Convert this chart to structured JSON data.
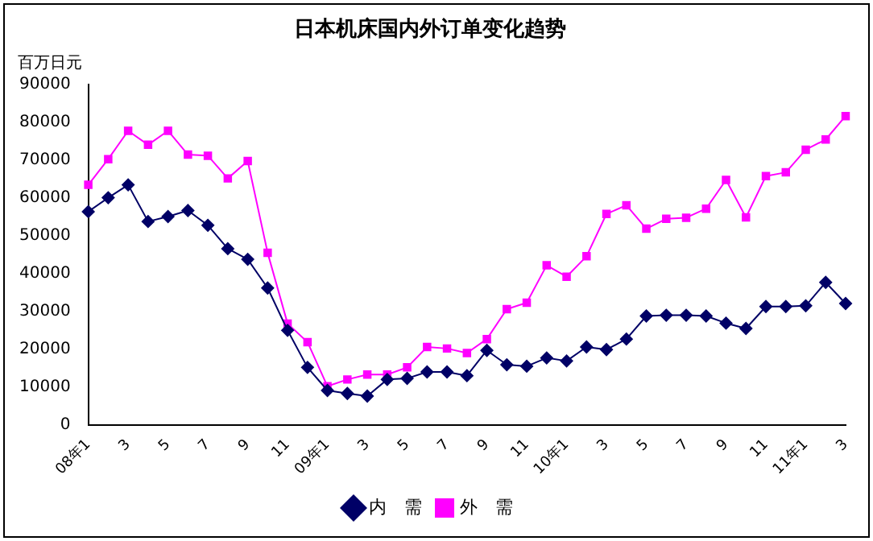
{
  "chart_data": {
    "type": "line",
    "title": "日本机床国内外订单变化趋势",
    "ylabel": "百万日元",
    "categories": [
      "08年1",
      null,
      "3",
      null,
      "5",
      null,
      "7",
      null,
      "9",
      null,
      "11",
      null,
      "09年1",
      null,
      "3",
      null,
      "5",
      null,
      "7",
      null,
      "9",
      null,
      "11",
      null,
      "10年1",
      null,
      "3",
      null,
      "5",
      null,
      "7",
      null,
      "9",
      null,
      "11",
      null,
      "11年1",
      null,
      "3"
    ],
    "series": [
      {
        "name": "内　需",
        "color": "#000066",
        "marker": "diamond",
        "values": [
          56400,
          60100,
          63500,
          53800,
          55100,
          56700,
          52800,
          46600,
          43800,
          36200,
          25000,
          15200,
          9100,
          8300,
          7600,
          12000,
          12300,
          14000,
          14000,
          13000,
          19700,
          15900,
          15500,
          17700,
          16900,
          20600,
          19900,
          22700,
          28800,
          29000,
          29000,
          28800,
          26900,
          25500,
          31300,
          31300,
          31500,
          37700,
          32100
        ]
      },
      {
        "name": "外　需",
        "color": "#ff00ff",
        "marker": "square",
        "values": [
          63500,
          70300,
          77800,
          74100,
          77800,
          71500,
          71200,
          65200,
          69800,
          45500,
          26800,
          21900,
          10200,
          12000,
          13300,
          13300,
          15200,
          20600,
          20200,
          19000,
          22700,
          30600,
          32300,
          42200,
          39200,
          44600,
          55800,
          58100,
          51900,
          54500,
          54800,
          57200,
          64800,
          54900,
          65800,
          66800,
          72800,
          75500,
          81700
        ]
      }
    ],
    "ylim": [
      0,
      90000
    ],
    "yticks": [
      0,
      10000,
      20000,
      30000,
      40000,
      50000,
      60000,
      70000,
      80000,
      90000
    ],
    "grid": false,
    "legend": "bottom"
  }
}
